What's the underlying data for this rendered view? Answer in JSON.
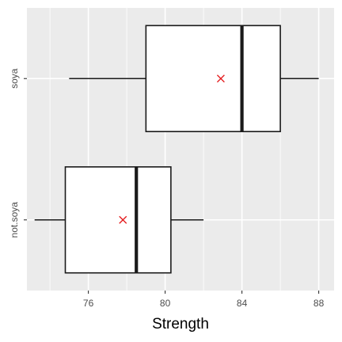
{
  "chart_data": {
    "type": "boxplot",
    "title": "",
    "xlabel": "Strength",
    "ylabel": "",
    "xlim": [
      72.8,
      88.8
    ],
    "xticks": [
      76,
      80,
      84,
      88
    ],
    "grid": true,
    "orientation": "horizontal",
    "categories": [
      "soya",
      "not.soya"
    ],
    "boxes": [
      {
        "category": "soya",
        "whisker_low": 75.0,
        "q1": 79.0,
        "median": 84.0,
        "q3": 86.0,
        "whisker_high": 88.0,
        "mean": 82.9
      },
      {
        "category": "not.soya",
        "whisker_low": 73.2,
        "q1": 74.8,
        "median": 78.5,
        "q3": 80.3,
        "whisker_high": 82.0,
        "mean": 77.8
      }
    ],
    "colors": {
      "panel": "#ebebeb",
      "grid": "#ffffff",
      "box_fill": "#ffffff",
      "box_line": "#1a1a1a",
      "mean_marker": "#e41a1c",
      "tick_text": "#4d4d4d"
    }
  }
}
